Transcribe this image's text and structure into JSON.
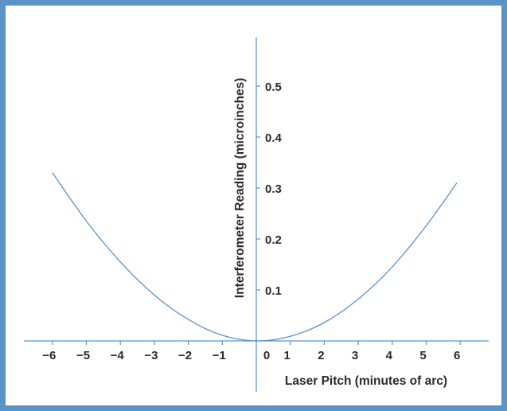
{
  "chart_data": {
    "type": "line",
    "title": "",
    "xlabel": "Laser Pitch (minutes of arc)",
    "ylabel": "Interferometer Reading (microinches)",
    "xlim": [
      -7,
      7
    ],
    "ylim": [
      0,
      0.6
    ],
    "x_ticks": [
      -6,
      -5,
      -4,
      -3,
      -2,
      -1,
      0,
      1,
      2,
      3,
      4,
      5,
      6
    ],
    "x_tick_labels": [
      "−6",
      "−5",
      "−4",
      "−3",
      "−2",
      "−1",
      "0",
      "1",
      "2",
      "3",
      "4",
      "5",
      "6"
    ],
    "y_ticks": [
      0.1,
      0.2,
      0.3,
      0.4,
      0.5
    ],
    "y_tick_labels": [
      "0.1",
      "0.2",
      "0.3",
      "0.4",
      "0.5"
    ],
    "grid": false,
    "series": [
      {
        "x": [
          -6,
          -5,
          -4,
          -3,
          -2,
          -1,
          0,
          1,
          2,
          3,
          4,
          5,
          5.9
        ],
        "values": [
          0.33,
          0.235,
          0.155,
          0.09,
          0.042,
          0.011,
          0,
          0.009,
          0.036,
          0.082,
          0.145,
          0.226,
          0.31
        ]
      }
    ],
    "colors": {
      "curve": "#5a93c7",
      "axis": "#5a93c7",
      "frame": "#5a93c7",
      "text": "#2a2a2a"
    }
  }
}
